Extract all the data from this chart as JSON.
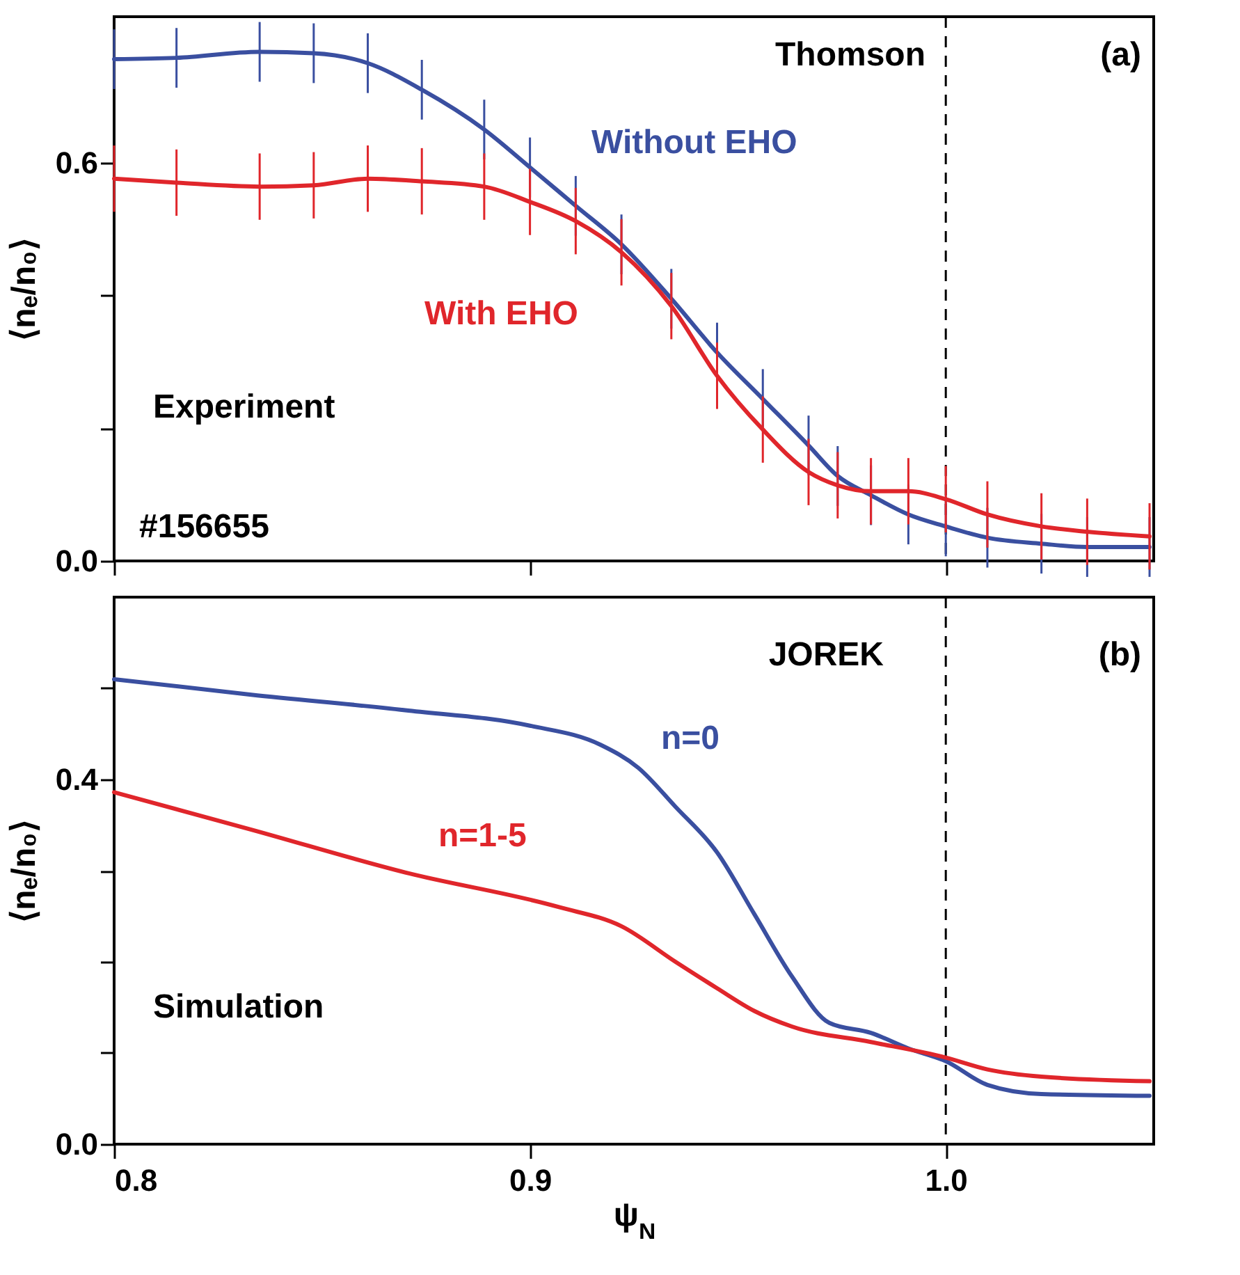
{
  "chart_data": [
    {
      "type": "line",
      "ylabel": "⟨nₑ/n₀⟩",
      "annotations": [
        "Thomson",
        "(a)",
        "Experiment",
        "#156655"
      ],
      "xlim": [
        0.8,
        1.05
      ],
      "xticks": [
        0.8,
        0.9,
        1.0
      ],
      "ylim": [
        0,
        0.82
      ],
      "yticks": [
        {
          "value": 0,
          "label": "0.0"
        },
        {
          "value": 0.2,
          "label": null
        },
        {
          "value": 0.4,
          "label": null
        },
        {
          "value": 0.6,
          "label": "0.6"
        }
      ],
      "tick_labels": "y",
      "ref_lines": [
        {
          "axis": "x",
          "value": 1.0,
          "line_style": "dashed",
          "color": "#000000"
        }
      ],
      "x": [
        0.8,
        0.815,
        0.835,
        0.848,
        0.861,
        0.874,
        0.889,
        0.9,
        0.911,
        0.922,
        0.934,
        0.945,
        0.956,
        0.967,
        0.974,
        0.982,
        0.991,
        1.0,
        1.01,
        1.023,
        1.034,
        1.049
      ],
      "series": [
        {
          "name": "Without EHO",
          "color": "#3a4fa0",
          "values": [
            0.756,
            0.758,
            0.767,
            0.765,
            0.75,
            0.71,
            0.65,
            0.593,
            0.535,
            0.477,
            0.395,
            0.314,
            0.244,
            0.174,
            0.128,
            0.099,
            0.07,
            0.052,
            0.035,
            0.026,
            0.021,
            0.021
          ],
          "errors": [
            0.045,
            0.045,
            0.045,
            0.045,
            0.045,
            0.045,
            0.045,
            0.045,
            0.045,
            0.045,
            0.045,
            0.045,
            0.045,
            0.045,
            0.045,
            0.045,
            0.045,
            0.045,
            0.045,
            0.045,
            0.045,
            0.045
          ]
        },
        {
          "name": "With EHO",
          "color": "#e0262b",
          "values": [
            0.576,
            0.57,
            0.564,
            0.566,
            0.576,
            0.572,
            0.564,
            0.541,
            0.512,
            0.465,
            0.384,
            0.279,
            0.198,
            0.134,
            0.114,
            0.105,
            0.105,
            0.093,
            0.07,
            0.052,
            0.044,
            0.037
          ],
          "errors": [
            0.05,
            0.05,
            0.05,
            0.05,
            0.05,
            0.05,
            0.05,
            0.05,
            0.05,
            0.05,
            0.05,
            0.05,
            0.05,
            0.05,
            0.05,
            0.05,
            0.05,
            0.05,
            0.05,
            0.05,
            0.05,
            0.05
          ]
        }
      ]
    },
    {
      "type": "line",
      "xlabel": "ψ$_{N}$",
      "ylabel": "⟨nₑ/n₀⟩",
      "annotations": [
        "JOREK",
        "(b)",
        "Simulation"
      ],
      "xlim": [
        0.8,
        1.05
      ],
      "xticks": [
        {
          "value": 0.8,
          "label": "0.8"
        },
        {
          "value": 0.9,
          "label": "0.9"
        },
        {
          "value": 1.0,
          "label": "1.0"
        }
      ],
      "ylim": [
        0,
        0.6
      ],
      "yticks": [
        {
          "value": 0,
          "label": "0.0"
        },
        {
          "value": 0.1,
          "label": null
        },
        {
          "value": 0.2,
          "label": null
        },
        {
          "value": 0.3,
          "label": null
        },
        {
          "value": 0.4,
          "label": "0.4"
        },
        {
          "value": 0.5,
          "label": null
        }
      ],
      "ref_lines": [
        {
          "axis": "x",
          "value": 1.0,
          "line_style": "dashed",
          "color": "#000000"
        }
      ],
      "series": [
        {
          "name": "n=0",
          "color": "#3a4fa0",
          "x": [
            0.8,
            0.833,
            0.87,
            0.9,
            0.917,
            0.926,
            0.935,
            0.945,
            0.954,
            0.963,
            0.972,
            0.982,
            0.991,
            1.0,
            1.01,
            1.023,
            1.049
          ],
          "values": [
            0.51,
            0.493,
            0.476,
            0.459,
            0.438,
            0.413,
            0.37,
            0.32,
            0.252,
            0.184,
            0.133,
            0.122,
            0.105,
            0.091,
            0.065,
            0.055,
            0.053
          ]
        },
        {
          "name": "n=1-5",
          "color": "#e0262b",
          "x": [
            0.8,
            0.833,
            0.87,
            0.907,
            0.922,
            0.935,
            0.945,
            0.954,
            0.963,
            0.982,
            1.0,
            1.01,
            1.023,
            1.049
          ],
          "values": [
            0.386,
            0.345,
            0.298,
            0.26,
            0.239,
            0.2,
            0.171,
            0.146,
            0.129,
            0.112,
            0.095,
            0.082,
            0.074,
            0.069
          ]
        }
      ]
    }
  ]
}
